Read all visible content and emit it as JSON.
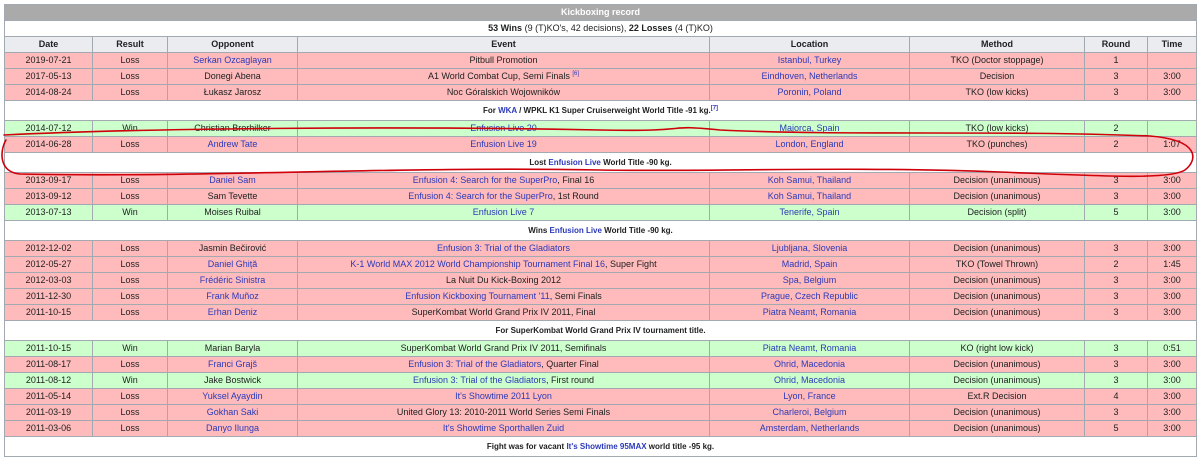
{
  "title": "Kickboxing record",
  "summary": {
    "wins": "53 Wins",
    "wins_detail": "(9 (T)KO's, 42 decisions),",
    "losses": "22 Losses",
    "losses_detail": "(4 (T)KO)"
  },
  "columns": [
    "Date",
    "Result",
    "Opponent",
    "Event",
    "Location",
    "Method",
    "Round",
    "Time"
  ],
  "rows": [
    {
      "type": "fight",
      "date": "2019-07-21",
      "result": "Loss",
      "opponent": "Serkan Ozcaglayan",
      "opponent_link": true,
      "event": "Pitbull Promotion",
      "event_link": false,
      "event_suffix": "",
      "location": "Istanbul, Turkey",
      "location_link": true,
      "location_parts": [
        "Istanbul",
        ", Turkey"
      ],
      "method": "TKO (Doctor stoppage)",
      "round": "1",
      "time": ""
    },
    {
      "type": "fight",
      "date": "2017-05-13",
      "result": "Loss",
      "opponent": "Donegi Abena",
      "opponent_link": false,
      "event": "A1 World Combat Cup, Semi Finals",
      "event_link": false,
      "event_suffix": "",
      "event_sup": "[6]",
      "location": "Eindhoven, Netherlands",
      "location_link": true,
      "method": "Decision",
      "round": "3",
      "time": "3:00"
    },
    {
      "type": "fight",
      "date": "2014-08-24",
      "result": "Loss",
      "opponent": "Łukasz Jarosz",
      "opponent_link": false,
      "event": "Noc Góralskich Wojowników",
      "event_link": false,
      "event_suffix": "",
      "location": "Poronin, Poland",
      "location_link": true,
      "method": "TKO (low kicks)",
      "round": "3",
      "time": "3:00"
    },
    {
      "type": "note",
      "pre": "For ",
      "link": "WKA",
      "post": " / WPKL K1 Super Cruiserweight World Title -91 kg.",
      "sup": "[7]"
    },
    {
      "type": "fight",
      "date": "2014-07-12",
      "result": "Win",
      "opponent": "Christian Brorhilker",
      "opponent_link": false,
      "event": "Enfusion Live 20",
      "event_link": true,
      "event_suffix": "",
      "location": "Majorca, Spain",
      "location_link": true,
      "method": "TKO (low kicks)",
      "round": "2",
      "time": ""
    },
    {
      "type": "fight",
      "date": "2014-06-28",
      "result": "Loss",
      "opponent": "Andrew Tate",
      "opponent_link": true,
      "event": "Enfusion Live 19",
      "event_link": true,
      "event_suffix": "",
      "location": "London, England",
      "location_link": true,
      "method": "TKO (punches)",
      "round": "2",
      "time": "1:07"
    },
    {
      "type": "note",
      "pre": "Lost ",
      "link": "Enfusion Live",
      "post": " World Title -90 kg.",
      "sup": ""
    },
    {
      "type": "fight",
      "date": "2013-09-17",
      "result": "Loss",
      "opponent": "Daniel Sam",
      "opponent_link": true,
      "event": "Enfusion 4: Search for the SuperPro",
      "event_link": true,
      "event_suffix": ", Final 16",
      "location": "Koh Samui, Thailand",
      "location_link": true,
      "method": "Decision (unanimous)",
      "round": "3",
      "time": "3:00"
    },
    {
      "type": "fight",
      "date": "2013-09-12",
      "result": "Loss",
      "opponent": "Sam Tevette",
      "opponent_link": false,
      "event": "Enfusion 4: Search for the SuperPro",
      "event_link": true,
      "event_suffix": ", 1st Round",
      "location": "Koh Samui, Thailand",
      "location_link": true,
      "method": "Decision (unanimous)",
      "round": "3",
      "time": "3:00"
    },
    {
      "type": "fight",
      "date": "2013-07-13",
      "result": "Win",
      "opponent": "Moises Ruibal",
      "opponent_link": false,
      "event": "Enfusion Live 7",
      "event_link": true,
      "event_suffix": "",
      "location": "Tenerife, Spain",
      "location_link": true,
      "method": "Decision (split)",
      "round": "5",
      "time": "3:00"
    },
    {
      "type": "note",
      "pre": "Wins ",
      "link": "Enfusion Live",
      "post": " World Title -90 kg.",
      "sup": ""
    },
    {
      "type": "fight",
      "date": "2012-12-02",
      "result": "Loss",
      "opponent": "Jasmin Bečirović",
      "opponent_link": false,
      "event": "Enfusion 3: Trial of the Gladiators",
      "event_link": true,
      "event_suffix": "",
      "location": "Ljubljana, Slovenia",
      "location_link": true,
      "method": "Decision (unanimous)",
      "round": "3",
      "time": "3:00"
    },
    {
      "type": "fight",
      "date": "2012-05-27",
      "result": "Loss",
      "opponent": "Daniel Ghiță",
      "opponent_link": true,
      "event": "K-1 World MAX 2012 World Championship Tournament Final 16",
      "event_link": true,
      "event_suffix": ", Super Fight",
      "location": "Madrid, Spain",
      "location_link": true,
      "method": "TKO (Towel Thrown)",
      "round": "2",
      "time": "1:45"
    },
    {
      "type": "fight",
      "date": "2012-03-03",
      "result": "Loss",
      "opponent": "Frédéric Sinistra",
      "opponent_link": true,
      "event": "La Nuit Du Kick-Boxing 2012",
      "event_link": false,
      "event_suffix": "",
      "location": "Spa, Belgium",
      "location_link": true,
      "method": "Decision (unanimous)",
      "round": "3",
      "time": "3:00"
    },
    {
      "type": "fight",
      "date": "2011-12-30",
      "result": "Loss",
      "opponent": "Frank Muñoz",
      "opponent_link": true,
      "event": "Enfusion Kickboxing Tournament '11",
      "event_link": true,
      "event_suffix": ", Semi Finals",
      "location": "Prague, Czech Republic",
      "location_link": true,
      "method": "Decision (unanimous)",
      "round": "3",
      "time": "3:00"
    },
    {
      "type": "fight",
      "date": "2011-10-15",
      "result": "Loss",
      "opponent": "Erhan Deniz",
      "opponent_link": true,
      "event": "SuperKombat World Grand Prix IV 2011, Final",
      "event_link": false,
      "event_suffix": "",
      "location": "Piatra Neamt, Romania",
      "location_link": true,
      "method": "Decision (unanimous)",
      "round": "3",
      "time": "3:00"
    },
    {
      "type": "note",
      "pre": "For SuperKombat World Grand Prix IV tournament title.",
      "link": "",
      "post": "",
      "sup": ""
    },
    {
      "type": "fight",
      "date": "2011-10-15",
      "result": "Win",
      "opponent": "Marian Baryla",
      "opponent_link": false,
      "event": "SuperKombat World Grand Prix IV 2011, Semifinals",
      "event_link": false,
      "event_suffix": "",
      "location": "Piatra Neamt, Romania",
      "location_link": true,
      "method": "KO (right low kick)",
      "round": "3",
      "time": "0:51"
    },
    {
      "type": "fight",
      "date": "2011-08-17",
      "result": "Loss",
      "opponent": "Franci Grajš",
      "opponent_link": true,
      "event": "Enfusion 3: Trial of the Gladiators",
      "event_link": true,
      "event_suffix": ", Quarter Final",
      "location": "Ohrid, Macedonia",
      "location_link": true,
      "method": "Decision (unanimous)",
      "round": "3",
      "time": "3:00"
    },
    {
      "type": "fight",
      "date": "2011-08-12",
      "result": "Win",
      "opponent": "Jake Bostwick",
      "opponent_link": false,
      "event": "Enfusion 3: Trial of the Gladiators",
      "event_link": true,
      "event_suffix": ", First round",
      "location": "Ohrid, Macedonia",
      "location_link": true,
      "method": "Decision (unanimous)",
      "round": "3",
      "time": "3:00"
    },
    {
      "type": "fight",
      "date": "2011-05-14",
      "result": "Loss",
      "opponent": "Yuksel Ayaydin",
      "opponent_link": true,
      "event": "It's Showtime 2011 Lyon",
      "event_link": true,
      "event_suffix": "",
      "location": "Lyon, France",
      "location_link": true,
      "method": "Ext.R Decision",
      "round": "4",
      "time": "3:00"
    },
    {
      "type": "fight",
      "date": "2011-03-19",
      "result": "Loss",
      "opponent": "Gokhan Saki",
      "opponent_link": true,
      "event": "United Glory 13: 2010-2011 World Series Semi Finals",
      "event_link": false,
      "event_suffix": "",
      "location": "Charleroi, Belgium",
      "location_link": true,
      "method": "Decision (unanimous)",
      "round": "3",
      "time": "3:00"
    },
    {
      "type": "fight",
      "date": "2011-03-06",
      "result": "Loss",
      "opponent": "Danyo Ilunga",
      "opponent_link": true,
      "event": "It's Showtime Sporthallen Zuid",
      "event_link": true,
      "event_suffix": "",
      "location": "Amsterdam, Netherlands",
      "location_link": true,
      "method": "Decision (unanimous)",
      "round": "5",
      "time": "3:00"
    },
    {
      "type": "note",
      "pre": "Fight was for vacant ",
      "link": "It's Showtime 95MAX",
      "post": " world title -95 kg.",
      "sup": ""
    }
  ],
  "annotation_color": "#d0000a"
}
